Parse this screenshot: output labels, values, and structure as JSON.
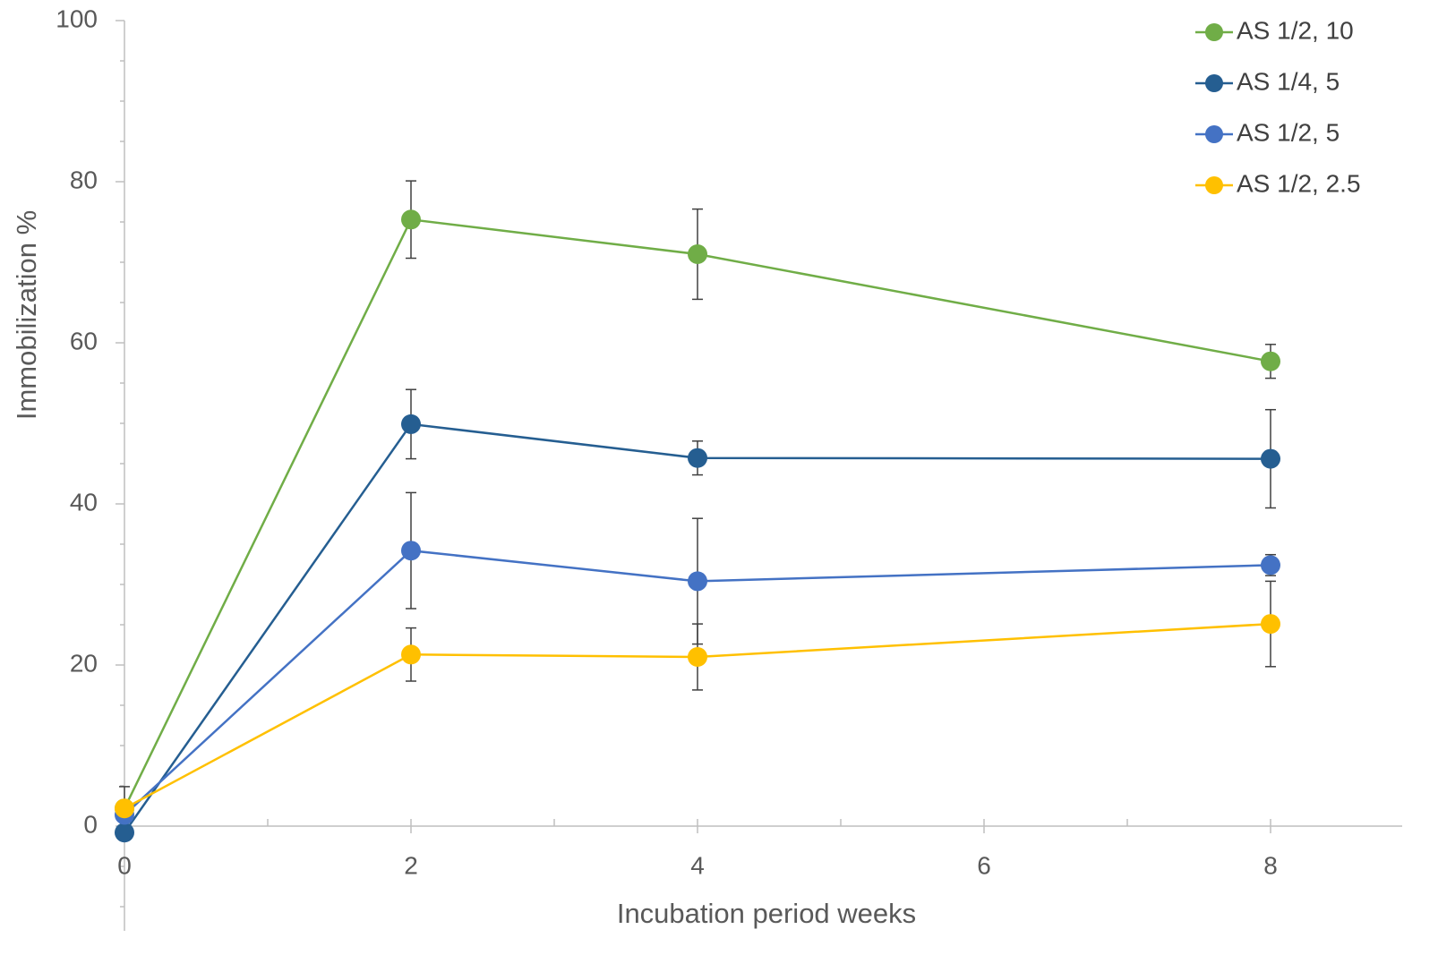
{
  "chart_data": {
    "type": "line",
    "x_label": "Incubation period weeks",
    "y_label": "Immobilization %",
    "x": [
      0,
      2,
      4,
      8
    ],
    "xlim": [
      0,
      9
    ],
    "xticks": [
      0,
      2,
      4,
      6,
      8
    ],
    "xminorticks": [
      1,
      3,
      5,
      7
    ],
    "ylim": [
      -13,
      100
    ],
    "yticks": [
      0,
      20,
      40,
      60,
      80,
      100
    ],
    "yminorticks": [
      -10,
      -5,
      5,
      10,
      15,
      25,
      30,
      35,
      45,
      50,
      55,
      65,
      70,
      75,
      85,
      90,
      95
    ],
    "legend": "upper right",
    "series": [
      {
        "name": "AS 1/2, 10",
        "color": "#70ad47",
        "values": [
          2.2,
          75.3,
          71.0,
          57.7
        ],
        "errors": [
          2.7,
          4.8,
          5.6,
          2.1
        ]
      },
      {
        "name": "AS 1/4, 5",
        "color": "#255e91",
        "values": [
          -0.8,
          49.9,
          45.7,
          45.6
        ],
        "errors": [
          0,
          4.3,
          2.1,
          6.1
        ]
      },
      {
        "name": "AS 1/2, 5",
        "color": "#4472c4",
        "values": [
          1.4,
          34.2,
          30.4,
          32.4
        ],
        "errors": [
          0,
          7.2,
          7.8,
          1.3
        ]
      },
      {
        "name": "AS 1/2, 2.5",
        "color": "#ffc000",
        "values": [
          2.2,
          21.3,
          21.0,
          25.1
        ],
        "errors": [
          0,
          3.3,
          4.1,
          5.3
        ]
      }
    ]
  }
}
